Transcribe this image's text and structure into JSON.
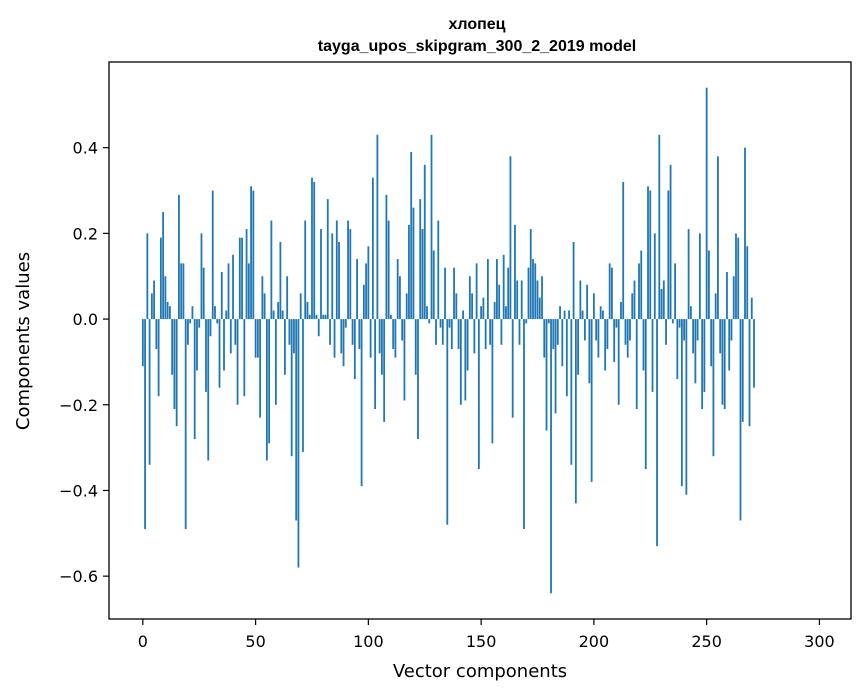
{
  "chart_data": {
    "type": "bar",
    "title": "хлопец",
    "subtitle": "tayga_upos_skipgram_300_2_2019 model",
    "xlabel": "Vector components",
    "ylabel": "Components values",
    "xlim": [
      -15,
      314
    ],
    "ylim": [
      -0.7,
      0.6
    ],
    "xticks": [
      0,
      50,
      100,
      150,
      200,
      250,
      300
    ],
    "yticks": [
      -0.6,
      -0.4,
      -0.2,
      0.0,
      0.2,
      0.4
    ],
    "ytick_labels": [
      "−0.6",
      "−0.4",
      "−0.2",
      "0.0",
      "0.2",
      "0.4"
    ],
    "grid": false,
    "bar_color": "#1f77b4",
    "values": [
      -0.11,
      -0.49,
      0.2,
      -0.34,
      0.06,
      0.09,
      -0.07,
      -0.18,
      0.19,
      0.25,
      0.1,
      0.04,
      0.03,
      -0.13,
      -0.21,
      -0.25,
      0.29,
      0.13,
      0.13,
      -0.49,
      -0.06,
      -0.01,
      0.03,
      -0.28,
      -0.12,
      -0.02,
      0.2,
      0.12,
      -0.17,
      -0.33,
      -0.04,
      0.3,
      0.03,
      -0.01,
      -0.16,
      0.11,
      -0.12,
      0.02,
      0.13,
      -0.08,
      0.15,
      -0.06,
      -0.2,
      0.19,
      0.19,
      -0.18,
      0.21,
      0.13,
      0.31,
      0.3,
      -0.09,
      -0.09,
      -0.23,
      0.1,
      0.06,
      -0.33,
      -0.29,
      0.23,
      0.02,
      -0.2,
      0.04,
      0.18,
      0.02,
      -0.13,
      0.1,
      -0.06,
      -0.32,
      -0.08,
      -0.47,
      -0.58,
      0.06,
      -0.31,
      0.23,
      0.04,
      0.01,
      0.33,
      0.32,
      0.01,
      -0.04,
      0.21,
      0.01,
      0.01,
      0.28,
      -0.06,
      0.2,
      -0.09,
      0.23,
      0.18,
      -0.08,
      -0.11,
      -0.02,
      0.23,
      0.21,
      -0.06,
      -0.14,
      0.14,
      -0.07,
      -0.39,
      0.08,
      0.13,
      0.17,
      -0.09,
      0.33,
      -0.21,
      0.43,
      -0.08,
      -0.13,
      -0.24,
      0.29,
      0.23,
      0.01,
      -0.07,
      -0.09,
      0.14,
      0.1,
      -0.05,
      -0.19,
      0.06,
      0.22,
      0.39,
      0.26,
      -0.13,
      -0.28,
      0.28,
      0.21,
      0.36,
      0.03,
      -0.01,
      0.43,
      0.16,
      -0.06,
      0.23,
      -0.02,
      -0.06,
      0.12,
      -0.48,
      -0.02,
      -0.07,
      0.12,
      0.06,
      -0.07,
      -0.2,
      0.02,
      -0.19,
      -0.12,
      0.1,
      0.06,
      -0.08,
      0.13,
      -0.35,
      0.03,
      0.05,
      -0.07,
      0.14,
      -0.06,
      -0.29,
      0.04,
      0.14,
      0.08,
      -0.06,
      0.15,
      0.03,
      0.12,
      0.38,
      -0.23,
      0.22,
      0.09,
      -0.06,
      0.09,
      -0.49,
      -0.01,
      0.12,
      0.21,
      0.14,
      0.13,
      0.09,
      0.05,
      0.1,
      -0.09,
      -0.26,
      -0.01,
      -0.64,
      -0.07,
      -0.22,
      -0.06,
      0.03,
      -0.11,
      0.02,
      -0.18,
      0.02,
      -0.34,
      0.18,
      -0.43,
      -0.13,
      0.09,
      0.02,
      -0.05,
      0.08,
      -0.15,
      -0.38,
      0.06,
      -0.05,
      -0.09,
      0.03,
      0.02,
      -0.12,
      -0.07,
      0.13,
      0.12,
      -0.1,
      -0.02,
      -0.2,
      0.04,
      0.32,
      -0.06,
      -0.09,
      -0.05,
      0.06,
      0.09,
      -0.21,
      0.13,
      0.16,
      -0.12,
      -0.35,
      0.31,
      0.3,
      -0.17,
      0.2,
      -0.53,
      0.43,
      0.07,
      0.09,
      -0.06,
      0.3,
      0.36,
      -0.01,
      0.13,
      -0.14,
      -0.02,
      -0.39,
      -0.05,
      -0.41,
      0.21,
      0.03,
      -0.08,
      -0.15,
      -0.05,
      0.2,
      -0.21,
      -0.17,
      0.54,
      0.16,
      -0.11,
      -0.32,
      0.06,
      0.38,
      -0.08,
      -0.2,
      -0.21,
      0.11,
      -0.12,
      -0.05,
      0.1,
      0.2,
      0.19,
      -0.47,
      -0.24,
      0.4,
      0.17,
      -0.25,
      0.05,
      -0.16
    ]
  }
}
